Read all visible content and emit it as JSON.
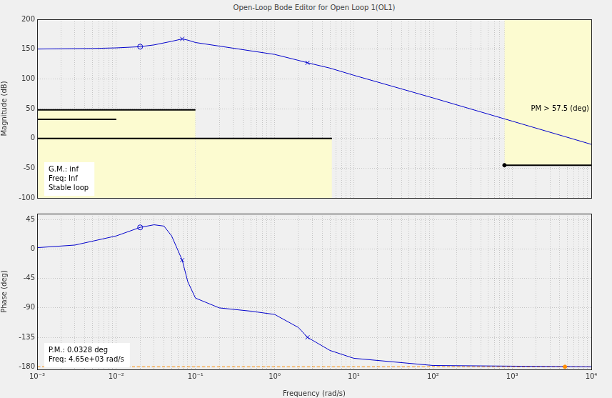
{
  "chart_data": [
    {
      "type": "line",
      "title": "Open-Loop Bode Editor for Open Loop 1(OL1)",
      "y_label": "Magnitude (dB)",
      "log": "x",
      "grid": true,
      "tick_labels": "y",
      "xlim": [
        0.001,
        10000
      ],
      "xticks": [
        {
          "value": 0.001,
          "label": "10⁻³"
        },
        {
          "value": 0.01,
          "label": "10⁻²"
        },
        {
          "value": 0.1,
          "label": "10⁻¹"
        },
        {
          "value": 1,
          "label": "10⁰"
        },
        {
          "value": 10,
          "label": "10¹"
        },
        {
          "value": 100,
          "label": "10²"
        },
        {
          "value": 1000,
          "label": "10³"
        },
        {
          "value": 10000,
          "label": "10⁴"
        }
      ],
      "ylim": [
        -100,
        200
      ],
      "yticks": [
        -100,
        -50,
        0,
        50,
        100,
        150,
        200
      ],
      "annotations": [
        [
          "G.M.: inf",
          "Freq: Inf",
          "Stable loop"
        ],
        [
          "PM > 57.5 (deg)"
        ]
      ],
      "series": [
        {
          "type": "line",
          "color": "#0000cc",
          "x": [
            0.001,
            0.002,
            0.005,
            0.01,
            0.02,
            0.03,
            0.05,
            0.068,
            0.08,
            0.1,
            0.2,
            0.5,
            1,
            2,
            2.6,
            5,
            10,
            100,
            1000,
            10000
          ],
          "values": [
            150,
            150.5,
            151,
            152,
            154,
            157,
            163,
            167,
            165,
            161,
            155,
            147,
            141,
            131,
            127,
            118,
            106,
            68,
            29,
            -10
          ]
        },
        {
          "type": "scatter",
          "marker": "circle",
          "color": "#0000cc",
          "x": [
            0.02
          ],
          "values": [
            154
          ]
        },
        {
          "type": "scatter",
          "marker": "cross",
          "color": "#0000cc",
          "x": [
            0.068,
            2.6
          ],
          "values": [
            167,
            127
          ]
        },
        {
          "type": "line",
          "color": "#000000",
          "x": [
            0.001,
            0.1
          ],
          "values": [
            48,
            48
          ]
        },
        {
          "type": "line",
          "color": "#000000",
          "x": [
            0.001,
            0.01
          ],
          "values": [
            32,
            32
          ]
        },
        {
          "type": "line",
          "color": "#000000",
          "x": [
            0.001,
            5.3
          ],
          "values": [
            0,
            0
          ]
        },
        {
          "type": "line",
          "color": "#000000",
          "x": [
            800,
            10000
          ],
          "values": [
            -45,
            -45
          ]
        },
        {
          "type": "scatter",
          "marker": "dot",
          "color": "#000000",
          "x": [
            800
          ],
          "values": [
            -45
          ]
        },
        {
          "type": "band",
          "color": "#fcfbd0",
          "x": [
            0.001,
            0.1
          ],
          "low": [
            -100,
            -100
          ],
          "high": [
            48,
            48
          ]
        },
        {
          "type": "band",
          "color": "#fcfbd0",
          "x": [
            0.1,
            5.3
          ],
          "low": [
            -100,
            -100
          ],
          "high": [
            0,
            0
          ]
        },
        {
          "type": "band",
          "color": "#fcfbd0",
          "x": [
            800,
            10000
          ],
          "low": [
            -45,
            -45
          ],
          "high": [
            200,
            200
          ]
        }
      ]
    },
    {
      "type": "line",
      "y_label": "Phase (deg)",
      "x_label": "Frequency (rad/s)",
      "log": "x",
      "grid": true,
      "xlim": [
        0.001,
        10000
      ],
      "xticks": [
        {
          "value": 0.001,
          "label": "10⁻³"
        },
        {
          "value": 0.01,
          "label": "10⁻²"
        },
        {
          "value": 0.1,
          "label": "10⁻¹"
        },
        {
          "value": 1,
          "label": "10⁰"
        },
        {
          "value": 10,
          "label": "10¹"
        },
        {
          "value": 100,
          "label": "10²"
        },
        {
          "value": 1000,
          "label": "10³"
        },
        {
          "value": 10000,
          "label": "10⁴"
        }
      ],
      "ylim": [
        -184,
        54
      ],
      "yticks": [
        -180,
        -135,
        -90,
        -45,
        0,
        45
      ],
      "annotations": [
        [
          "P.M.: 0.0328 deg",
          "Freq: 4.65e+03 rad/s"
        ]
      ],
      "series": [
        {
          "type": "line",
          "color": "#0000cc",
          "x": [
            0.001,
            0.003,
            0.01,
            0.02,
            0.03,
            0.04,
            0.05,
            0.068,
            0.08,
            0.1,
            0.2,
            0.5,
            1,
            2,
            2.6,
            5,
            10,
            100,
            10000
          ],
          "values": [
            2,
            6,
            20,
            33,
            37,
            35,
            20,
            -17,
            -50,
            -75,
            -90,
            -95,
            -100,
            -120,
            -135,
            -155,
            -167,
            -178,
            -180
          ]
        },
        {
          "type": "scatter",
          "marker": "circle",
          "color": "#0000cc",
          "x": [
            0.02
          ],
          "values": [
            33
          ]
        },
        {
          "type": "scatter",
          "marker": "cross",
          "color": "#0000cc",
          "x": [
            0.068,
            2.6
          ],
          "values": [
            -17,
            -135
          ]
        },
        {
          "type": "line",
          "color": "#ff8c00",
          "line_style": "dashed",
          "x": [
            0.001,
            10000
          ],
          "values": [
            -180,
            -180
          ]
        },
        {
          "type": "scatter",
          "marker": "dot",
          "color": "#ff8c00",
          "x": [
            4650
          ],
          "values": [
            -180
          ]
        }
      ]
    }
  ]
}
